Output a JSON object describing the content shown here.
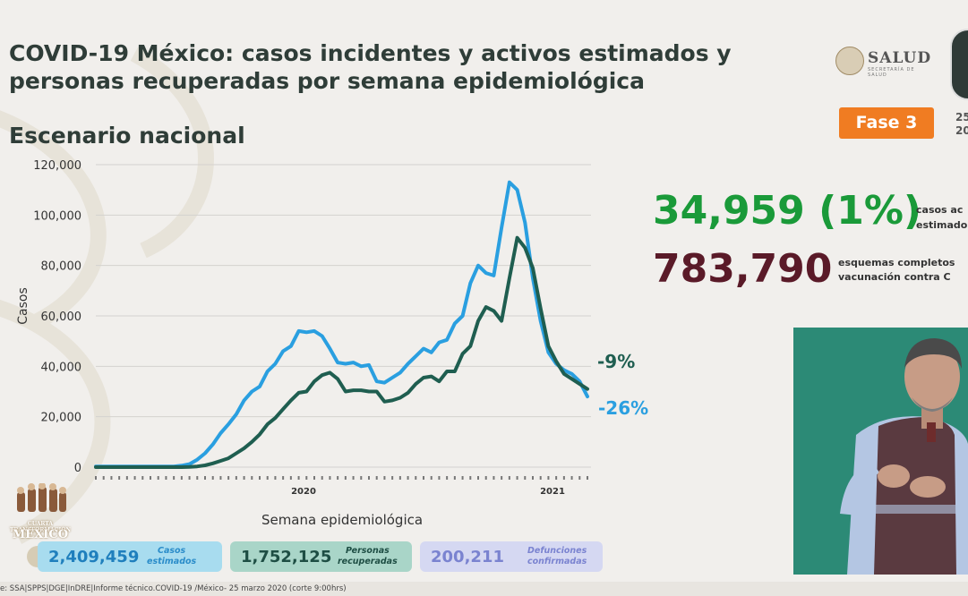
{
  "title": "COVID-19 México: casos incidentes y activos estimados y personas recuperadas por semana epidemiológica",
  "subtitle": "Escenario nacional",
  "logo_salud": {
    "word": "SALUD",
    "sub": "SECRETARÍA DE SALUD"
  },
  "fase_badge": "Fase 3",
  "date_partial": [
    "25",
    "20"
  ],
  "big_stats": {
    "active_value": "34,959 (1%)",
    "active_label": [
      "casos ac",
      "estimado"
    ],
    "vaccine_value": "783,790",
    "vaccine_label": [
      "esquemas completos",
      "vacunación contra C"
    ]
  },
  "chart_data": {
    "type": "line",
    "title": "",
    "xlabel": "Semana epidemiológica",
    "ylabel": "Casos",
    "ylim": [
      0,
      120000
    ],
    "yticks": [
      "0",
      "20,000",
      "40,000",
      "60,000",
      "80,000",
      "100,000",
      "120,000"
    ],
    "year_labels": [
      "2020",
      "2021"
    ],
    "grid": true,
    "x": [
      1,
      2,
      3,
      4,
      5,
      6,
      7,
      8,
      9,
      10,
      11,
      12,
      13,
      14,
      15,
      16,
      17,
      18,
      19,
      20,
      21,
      22,
      23,
      24,
      25,
      26,
      27,
      28,
      29,
      30,
      31,
      32,
      33,
      34,
      35,
      36,
      37,
      38,
      39,
      40,
      41,
      42,
      43,
      44,
      45,
      46,
      47,
      48,
      49,
      50,
      51,
      52,
      53,
      54,
      55,
      56,
      57,
      58,
      59,
      60,
      61,
      62,
      63,
      64
    ],
    "series": [
      {
        "name": "Casos incidentes estimados",
        "color": "#2a9fe0",
        "values": [
          300,
          300,
          300,
          300,
          300,
          300,
          300,
          300,
          300,
          300,
          300,
          600,
          1200,
          3000,
          5500,
          9000,
          13500,
          17000,
          21000,
          26500,
          30000,
          32000,
          38000,
          41000,
          46000,
          48000,
          54000,
          53500,
          54000,
          52000,
          47000,
          41500,
          41000,
          41500,
          40000,
          40500,
          34000,
          33500,
          35500,
          37500,
          41000,
          44000,
          47000,
          45500,
          49500,
          50500,
          57000,
          60000,
          73000,
          80000,
          77000,
          76000,
          95000,
          113000,
          110000,
          97000,
          75000,
          58000,
          45500,
          41000,
          38500,
          37000,
          34000,
          28000
        ]
      },
      {
        "name": "Personas recuperadas",
        "color": "#1f5e50",
        "values": [
          0,
          0,
          0,
          0,
          0,
          0,
          0,
          0,
          0,
          0,
          0,
          0,
          100,
          300,
          700,
          1500,
          2500,
          3500,
          5500,
          7500,
          10000,
          13000,
          17000,
          19500,
          23000,
          26500,
          29500,
          30000,
          34000,
          36500,
          37500,
          35000,
          30000,
          30500,
          30500,
          30000,
          30000,
          26000,
          26500,
          27500,
          29500,
          33000,
          35500,
          36000,
          34000,
          38000,
          38000,
          45000,
          48000,
          58000,
          63500,
          62000,
          58000,
          75000,
          91000,
          87000,
          79000,
          63000,
          48000,
          42000,
          37000,
          35000,
          33000,
          31000
        ]
      }
    ],
    "annotations": [
      "-9%",
      "-26%"
    ]
  },
  "bottom_stats": [
    {
      "value": "2,409,459",
      "label": [
        "Casos",
        "estimados"
      ]
    },
    {
      "value": "1,752,125",
      "label": [
        "Personas",
        "recuperadas"
      ]
    },
    {
      "value": "200,211",
      "label": [
        "Defunciones",
        "confirmadas"
      ]
    }
  ],
  "logo_bottom": {
    "line1": "CUARTA TRANSFORMACIÓN",
    "line2": "MÉXICO"
  },
  "footer_text": "e: SSA|SPPS|DGE|InDRE|Informe técnico.COVID-19 /México- 25 marzo 2020 (corte 9:00hrs)",
  "colors": {
    "orange": "#f07c22",
    "green": "#1a9a39",
    "maroon": "#5a1a28",
    "blue": "#2a9fe0",
    "darkgreen": "#1f5e50"
  }
}
